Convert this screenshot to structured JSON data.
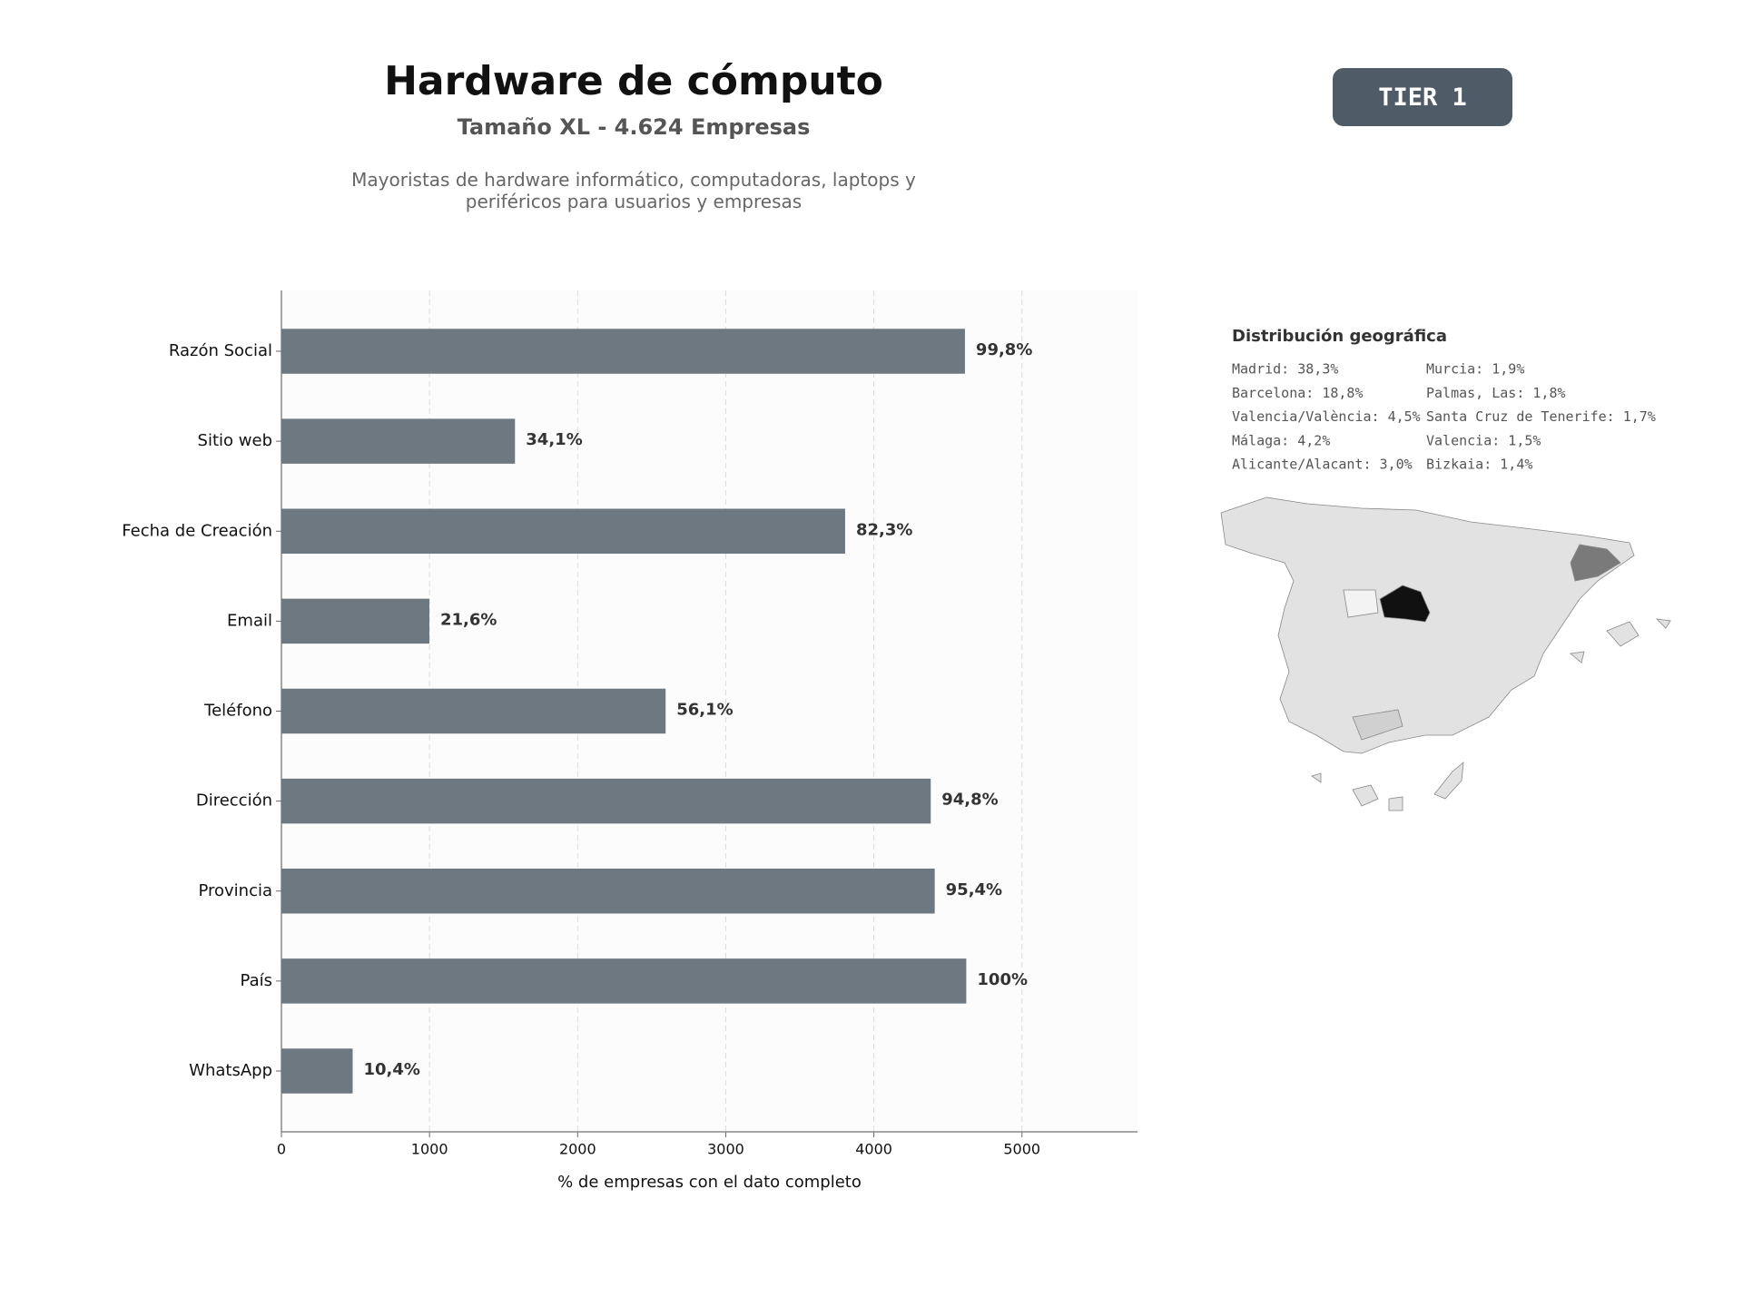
{
  "chart_data": {
    "type": "barh",
    "title": "Hardware de cómputo",
    "subtitle": "Tamaño XL - 4.624 Empresas",
    "description": "Mayoristas de hardware informático, computadoras, laptops y periféricos para usuarios y empresas",
    "badge": "TIER 1",
    "xlabel": "% de empresas con el dato completo",
    "categories": [
      "Razón Social",
      "Sitio web",
      "Fecha de Creación",
      "Email",
      "Teléfono",
      "Dirección",
      "Provincia",
      "País",
      "WhatsApp"
    ],
    "values": [
      4615,
      1577,
      3806,
      999,
      2594,
      4384,
      4411,
      4624,
      481
    ],
    "value_labels": [
      "99,8%",
      "34,1%",
      "82,3%",
      "21,6%",
      "56,1%",
      "94,8%",
      "95,4%",
      "100%",
      "10,4%"
    ],
    "color": "#6e7881",
    "xlim": [
      0,
      5780
    ],
    "xticks": [
      0,
      1000,
      2000,
      3000,
      4000,
      5000
    ],
    "grid": true
  },
  "geo": {
    "title": "Distribución geográfica",
    "items": [
      "Madrid: 38,3%",
      "Barcelona: 18,8%",
      "Valencia/València: 4,5%",
      "Málaga: 4,2%",
      "Alicante/Alacant: 3,0%",
      "Murcia: 1,9%",
      "Palmas, Las: 1,8%",
      "Santa Cruz de Tenerife: 1,7%",
      "Valencia: 1,5%",
      "Bizkaia: 1,4%"
    ]
  }
}
